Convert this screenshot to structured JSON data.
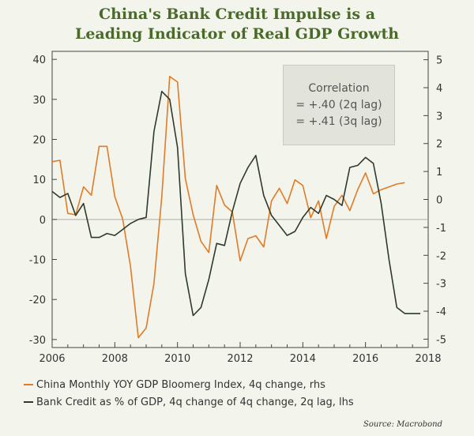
{
  "title_lines": [
    "China's Bank Credit Impulse is a",
    "Leading Indicator of Real GDP Growth"
  ],
  "correlation_box": {
    "heading": "Correlation",
    "line1": "= +.40 (2q lag)",
    "line2": "= +.41 (3q lag)"
  },
  "legend": [
    {
      "label": "China Monthly YOY GDP Bloomerg Index, 4q change, rhs",
      "color": "#e07b27"
    },
    {
      "label": "Bank Credit as % of GDP, 4q change of 4q change, 2q lag, lhs",
      "color": "#2e3a2a"
    }
  ],
  "source": "Source: Macrobond",
  "chart_data": {
    "type": "line",
    "xlim": [
      2006,
      2018
    ],
    "x_ticks": [
      "2006",
      "2008",
      "2010",
      "2012",
      "2014",
      "2016",
      "2018"
    ],
    "y_left": {
      "ylim": [
        -32,
        42
      ],
      "ticks": [
        "40",
        "30",
        "20",
        "10",
        "0",
        "-10",
        "-20",
        "-30"
      ]
    },
    "y_right": {
      "ylim": [
        -5.3,
        5.3
      ],
      "ticks": [
        "5",
        "4",
        "3",
        "2",
        "1",
        "0",
        "-1",
        "-2",
        "-3",
        "-4",
        "-5"
      ]
    },
    "series": [
      {
        "axis": "right",
        "color": "#e07b27",
        "x": [
          2006.0,
          2006.25,
          2006.5,
          2006.75,
          2007.0,
          2007.25,
          2007.5,
          2007.75,
          2008.0,
          2008.25,
          2008.5,
          2008.75,
          2009.0,
          2009.25,
          2009.5,
          2009.75,
          2010.0,
          2010.25,
          2010.5,
          2010.75,
          2011.0,
          2011.25,
          2011.5,
          2011.75,
          2012.0,
          2012.25,
          2012.5,
          2012.75,
          2013.0,
          2013.25,
          2013.5,
          2013.75,
          2014.0,
          2014.25,
          2014.5,
          2014.75,
          2015.0,
          2015.25,
          2015.5,
          2015.75,
          2016.0,
          2016.25,
          2016.5,
          2016.75,
          2017.0,
          2017.25
        ],
        "y": [
          1.35,
          1.4,
          -0.5,
          -0.55,
          0.45,
          0.15,
          1.9,
          1.9,
          0.1,
          -0.7,
          -2.4,
          -4.95,
          -4.6,
          -3.0,
          0.1,
          4.4,
          4.2,
          0.75,
          -0.55,
          -1.5,
          -1.9,
          0.5,
          -0.2,
          -0.45,
          -2.2,
          -1.4,
          -1.3,
          -1.7,
          -0.05,
          0.4,
          -0.15,
          0.7,
          0.5,
          -0.65,
          -0.05,
          -1.4,
          -0.25,
          0.15,
          -0.4,
          0.35,
          0.95,
          0.2,
          0.35,
          0.45,
          0.55,
          0.6
        ]
      },
      {
        "axis": "left",
        "color": "#2e3a2a",
        "x": [
          2006.0,
          2006.25,
          2006.5,
          2006.75,
          2007.0,
          2007.25,
          2007.5,
          2007.75,
          2008.0,
          2008.25,
          2008.5,
          2008.75,
          2009.0,
          2009.25,
          2009.5,
          2009.75,
          2010.0,
          2010.25,
          2010.5,
          2010.75,
          2011.0,
          2011.25,
          2011.5,
          2011.75,
          2012.0,
          2012.25,
          2012.5,
          2012.75,
          2013.0,
          2013.25,
          2013.5,
          2013.75,
          2014.0,
          2014.25,
          2014.5,
          2014.75,
          2015.0,
          2015.25,
          2015.5,
          2015.75,
          2016.0,
          2016.25,
          2016.5,
          2016.75,
          2017.0,
          2017.25,
          2017.5,
          2017.75
        ],
        "y": [
          7,
          5.5,
          6.5,
          1,
          4,
          -4.5,
          -4.5,
          -3.5,
          -4,
          -2.5,
          -1,
          0,
          0.5,
          22,
          32,
          30,
          18,
          -13.5,
          -24,
          -22,
          -15,
          -6,
          -6.5,
          2,
          9,
          13,
          16,
          6,
          1,
          -1.5,
          -4,
          -3,
          0.5,
          3,
          1.5,
          6,
          5,
          3.5,
          13,
          13.5,
          15.5,
          14,
          4,
          -10,
          -22,
          -23.5,
          -23.5,
          -23.5
        ]
      }
    ]
  }
}
